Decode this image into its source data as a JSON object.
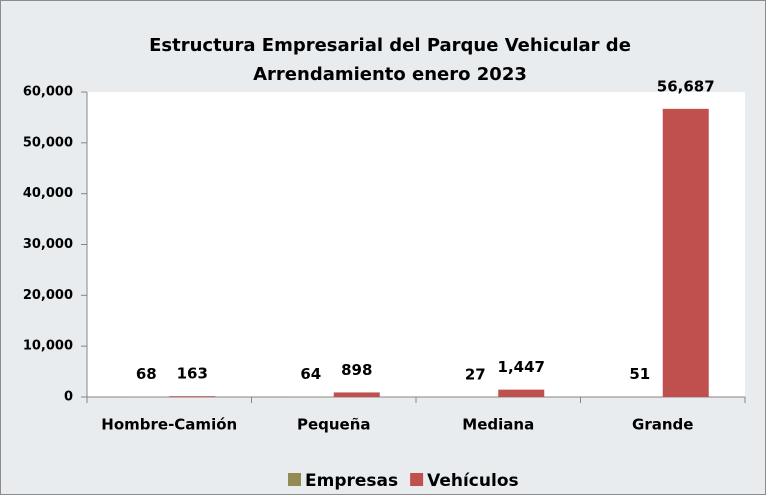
{
  "chart_data": {
    "type": "bar",
    "title": [
      "Estructura Empresarial del Parque Vehicular de",
      "Arrendamiento enero 2023"
    ],
    "categories": [
      "Hombre-Camión",
      "Pequeña",
      "Mediana",
      "Grande"
    ],
    "series": [
      {
        "name": "Empresas",
        "color": "#948a54",
        "values": [
          68,
          64,
          27,
          51
        ],
        "value_labels": [
          "68",
          "64",
          "27",
          "51"
        ]
      },
      {
        "name": "Vehículos",
        "color": "#c0504d",
        "values": [
          163,
          898,
          1447,
          56687
        ],
        "value_labels": [
          "163",
          "898",
          "1,447",
          "56,687"
        ]
      }
    ],
    "ylim": [
      0,
      60000
    ],
    "yticks": [
      0,
      {
        "value": 10000,
        "label": "10,000"
      },
      {
        "value": 20000,
        "label": "20,000"
      },
      {
        "value": 30000,
        "label": "30,000"
      },
      {
        "value": 40000,
        "label": "40,000"
      },
      {
        "value": 50000,
        "label": "50,000"
      },
      {
        "value": 60000,
        "label": "60,000"
      }
    ],
    "legend": "bottom"
  }
}
